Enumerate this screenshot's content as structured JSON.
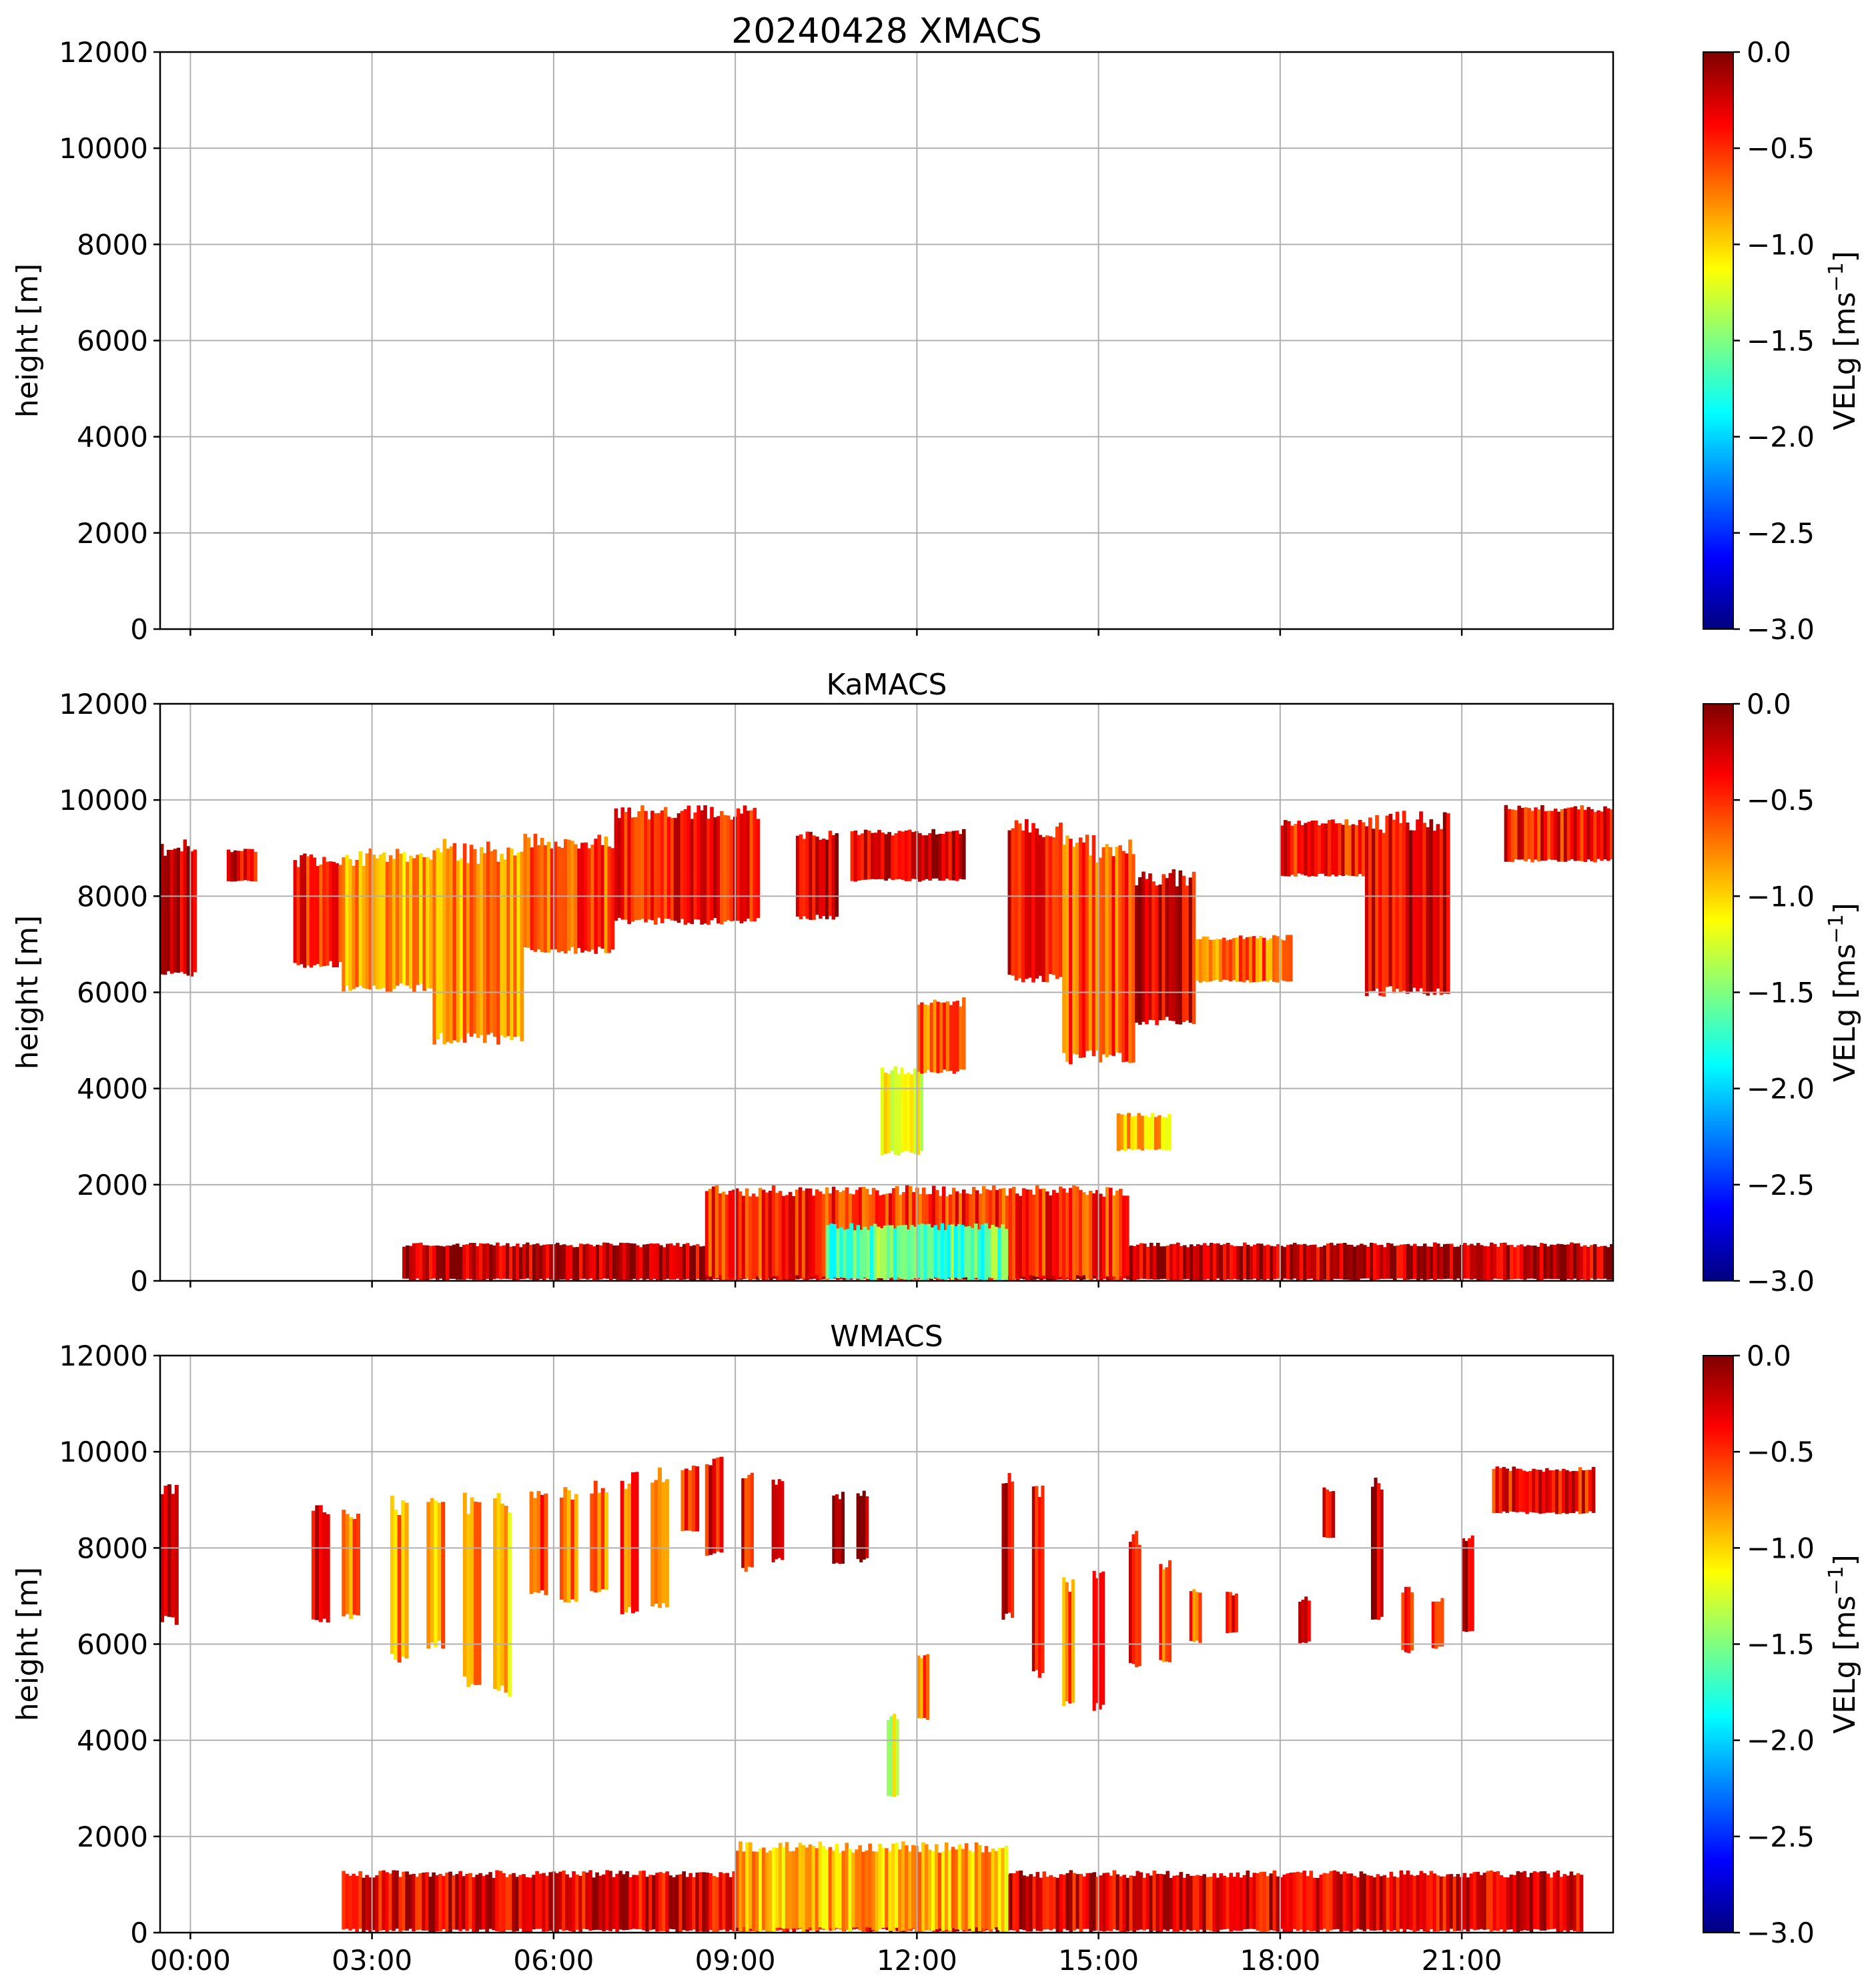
{
  "figure": {
    "title": "20240428 XMACS"
  },
  "chart_data": [
    {
      "type": "heatmap",
      "panel": "XMACS",
      "title": "20240428 XMACS",
      "xlabel": "",
      "ylabel": "height [m]",
      "ylim": [
        0,
        12000
      ],
      "xlim_hours": [
        -0.5,
        23.5
      ],
      "yticks": [
        0,
        2000,
        4000,
        6000,
        8000,
        10000,
        12000
      ],
      "xticks": [],
      "xtick_hours": [
        0,
        3,
        6,
        9,
        12,
        15,
        18,
        21
      ],
      "grid": true,
      "colorbar": {
        "label": "VELg [ms$^{-1}$]",
        "label_main": "VELg [ms",
        "label_sup": "−1",
        "label_end": "]",
        "range": [
          -3.0,
          0.0
        ],
        "ticks": [
          "0.0",
          "−0.5",
          "−1.0",
          "−1.5",
          "−2.0",
          "−2.5",
          "−3.0"
        ],
        "colormap": "jet"
      },
      "echoes": []
    },
    {
      "type": "heatmap",
      "panel": "KaMACS",
      "title": "KaMACS",
      "xlabel": "",
      "ylabel": "height [m]",
      "ylim": [
        0,
        12000
      ],
      "xlim_hours": [
        -0.5,
        23.5
      ],
      "yticks": [
        0,
        2000,
        4000,
        6000,
        8000,
        10000,
        12000
      ],
      "xticks": [],
      "xtick_hours": [
        0,
        3,
        6,
        9,
        12,
        15,
        18,
        21
      ],
      "grid": true,
      "colorbar": {
        "label": "VELg [ms$^{-1}$]",
        "label_main": "VELg [ms",
        "label_sup": "−1",
        "label_end": "]",
        "range": [
          -3.0,
          0.0
        ],
        "ticks": [
          "0.0",
          "−0.5",
          "−1.0",
          "−1.5",
          "−2.0",
          "−2.5",
          "−3.0"
        ],
        "colormap": "jet"
      },
      "echoes": [
        {
          "t0": -0.5,
          "t1": 0.1,
          "h_bottom": 6300,
          "h_top": 9200,
          "vel": -0.2
        },
        {
          "t0": 0.6,
          "t1": 1.1,
          "h_bottom": 8300,
          "h_top": 9000,
          "vel": -0.3
        },
        {
          "t0": 1.7,
          "t1": 2.5,
          "h_bottom": 6500,
          "h_top": 8900,
          "vel": -0.4
        },
        {
          "t0": 2.5,
          "t1": 4.0,
          "h_bottom": 6000,
          "h_top": 9000,
          "vel": -0.9
        },
        {
          "t0": 4.0,
          "t1": 5.5,
          "h_bottom": 4900,
          "h_top": 9200,
          "vel": -0.8
        },
        {
          "t0": 5.5,
          "t1": 7.0,
          "h_bottom": 6800,
          "h_top": 9300,
          "vel": -0.6
        },
        {
          "t0": 7.0,
          "t1": 9.4,
          "h_bottom": 7400,
          "h_top": 9900,
          "vel": -0.4
        },
        {
          "t0": 10.0,
          "t1": 10.7,
          "h_bottom": 7500,
          "h_top": 9400,
          "vel": -0.2
        },
        {
          "t0": 10.9,
          "t1": 12.8,
          "h_bottom": 8300,
          "h_top": 9400,
          "vel": -0.3
        },
        {
          "t0": 11.4,
          "t1": 12.1,
          "h_bottom": 2600,
          "h_top": 4500,
          "vel": -1.2
        },
        {
          "t0": 12.0,
          "t1": 12.8,
          "h_bottom": 4300,
          "h_top": 5900,
          "vel": -0.7
        },
        {
          "t0": 13.5,
          "t1": 14.4,
          "h_bottom": 6200,
          "h_top": 9600,
          "vel": -0.3
        },
        {
          "t0": 14.4,
          "t1": 15.6,
          "h_bottom": 4500,
          "h_top": 9300,
          "vel": -0.6
        },
        {
          "t0": 15.6,
          "t1": 16.6,
          "h_bottom": 5300,
          "h_top": 8600,
          "vel": -0.3
        },
        {
          "t0": 16.6,
          "t1": 18.2,
          "h_bottom": 6200,
          "h_top": 7200,
          "vel": -0.7
        },
        {
          "t0": 18.0,
          "t1": 19.4,
          "h_bottom": 8400,
          "h_top": 9600,
          "vel": -0.4
        },
        {
          "t0": 19.4,
          "t1": 20.8,
          "h_bottom": 5900,
          "h_top": 9800,
          "vel": -0.3
        },
        {
          "t0": 21.7,
          "t1": 23.5,
          "h_bottom": 8700,
          "h_top": 9900,
          "vel": -0.4
        },
        {
          "t0": 15.3,
          "t1": 16.2,
          "h_bottom": 2700,
          "h_top": 3500,
          "vel": -0.9
        },
        {
          "t0": 3.5,
          "t1": 23.5,
          "h_bottom": 0,
          "h_top": 800,
          "vel": -0.2
        },
        {
          "t0": 8.5,
          "t1": 15.5,
          "h_bottom": 0,
          "h_top": 2000,
          "vel": -0.5
        },
        {
          "t0": 10.5,
          "t1": 13.5,
          "h_bottom": 0,
          "h_top": 1200,
          "vel": -1.6
        }
      ]
    },
    {
      "type": "heatmap",
      "panel": "WMACS",
      "title": "WMACS",
      "xlabel": "",
      "ylabel": "height [m]",
      "ylim": [
        0,
        12000
      ],
      "xlim_hours": [
        -0.5,
        23.5
      ],
      "yticks": [
        0,
        2000,
        4000,
        6000,
        8000,
        10000,
        12000
      ],
      "xticks": [
        "00:00",
        "03:00",
        "06:00",
        "09:00",
        "12:00",
        "15:00",
        "18:00",
        "21:00"
      ],
      "xtick_hours": [
        0,
        3,
        6,
        9,
        12,
        15,
        18,
        21
      ],
      "grid": true,
      "colorbar": {
        "label": "VELg [ms$^{-1}$]",
        "label_main": "VELg [ms",
        "label_sup": "−1",
        "label_end": "]",
        "range": [
          -3.0,
          0.0
        ],
        "ticks": [
          "0.0",
          "−0.5",
          "−1.0",
          "−1.5",
          "−2.0",
          "−2.5",
          "−3.0"
        ],
        "colormap": "jet"
      },
      "echoes": [
        {
          "t0": -0.5,
          "t1": -0.2,
          "h_bottom": 6400,
          "h_top": 9400,
          "vel": -0.2
        },
        {
          "t0": 2.0,
          "t1": 2.3,
          "h_bottom": 6400,
          "h_top": 8900,
          "vel": -0.4
        },
        {
          "t0": 2.5,
          "t1": 2.8,
          "h_bottom": 6500,
          "h_top": 8800,
          "vel": -0.7
        },
        {
          "t0": 3.3,
          "t1": 3.6,
          "h_bottom": 5600,
          "h_top": 9100,
          "vel": -0.8
        },
        {
          "t0": 3.9,
          "t1": 4.2,
          "h_bottom": 5900,
          "h_top": 9200,
          "vel": -0.8
        },
        {
          "t0": 4.5,
          "t1": 4.8,
          "h_bottom": 5100,
          "h_top": 9200,
          "vel": -0.9
        },
        {
          "t0": 5.0,
          "t1": 5.3,
          "h_bottom": 4900,
          "h_top": 9200,
          "vel": -0.9
        },
        {
          "t0": 5.6,
          "t1": 5.9,
          "h_bottom": 7000,
          "h_top": 9200,
          "vel": -0.6
        },
        {
          "t0": 6.1,
          "t1": 6.4,
          "h_bottom": 6800,
          "h_top": 9300,
          "vel": -0.7
        },
        {
          "t0": 6.6,
          "t1": 6.9,
          "h_bottom": 7000,
          "h_top": 9400,
          "vel": -0.7
        },
        {
          "t0": 7.1,
          "t1": 7.4,
          "h_bottom": 6600,
          "h_top": 9600,
          "vel": -0.6
        },
        {
          "t0": 7.6,
          "t1": 7.9,
          "h_bottom": 6700,
          "h_top": 9700,
          "vel": -0.6
        },
        {
          "t0": 8.1,
          "t1": 8.4,
          "h_bottom": 8300,
          "h_top": 9800,
          "vel": -0.5
        },
        {
          "t0": 8.5,
          "t1": 8.8,
          "h_bottom": 7800,
          "h_top": 9900,
          "vel": -0.4
        },
        {
          "t0": 9.1,
          "t1": 9.3,
          "h_bottom": 7500,
          "h_top": 9600,
          "vel": -0.4
        },
        {
          "t0": 9.6,
          "t1": 9.8,
          "h_bottom": 7700,
          "h_top": 9500,
          "vel": -0.4
        },
        {
          "t0": 10.6,
          "t1": 10.8,
          "h_bottom": 7600,
          "h_top": 9200,
          "vel": -0.2
        },
        {
          "t0": 11.0,
          "t1": 11.2,
          "h_bottom": 7700,
          "h_top": 9200,
          "vel": -0.2
        },
        {
          "t0": 11.5,
          "t1": 11.7,
          "h_bottom": 2800,
          "h_top": 4600,
          "vel": -1.2
        },
        {
          "t0": 12.0,
          "t1": 12.2,
          "h_bottom": 4400,
          "h_top": 5800,
          "vel": -0.7
        },
        {
          "t0": 13.4,
          "t1": 13.6,
          "h_bottom": 6500,
          "h_top": 9600,
          "vel": -0.3
        },
        {
          "t0": 13.9,
          "t1": 14.1,
          "h_bottom": 5200,
          "h_top": 9400,
          "vel": -0.4
        },
        {
          "t0": 14.4,
          "t1": 14.6,
          "h_bottom": 4700,
          "h_top": 7400,
          "vel": -0.7
        },
        {
          "t0": 14.9,
          "t1": 15.1,
          "h_bottom": 4600,
          "h_top": 7600,
          "vel": -0.5
        },
        {
          "t0": 15.5,
          "t1": 15.7,
          "h_bottom": 5500,
          "h_top": 8400,
          "vel": -0.4
        },
        {
          "t0": 16.0,
          "t1": 16.2,
          "h_bottom": 5600,
          "h_top": 7800,
          "vel": -0.6
        },
        {
          "t0": 16.5,
          "t1": 16.7,
          "h_bottom": 6000,
          "h_top": 7200,
          "vel": -0.6
        },
        {
          "t0": 17.1,
          "t1": 17.3,
          "h_bottom": 6200,
          "h_top": 7100,
          "vel": -0.4
        },
        {
          "t0": 18.3,
          "t1": 18.5,
          "h_bottom": 6000,
          "h_top": 7000,
          "vel": -0.4
        },
        {
          "t0": 18.7,
          "t1": 18.9,
          "h_bottom": 8200,
          "h_top": 9300,
          "vel": -0.4
        },
        {
          "t0": 19.5,
          "t1": 19.7,
          "h_bottom": 6500,
          "h_top": 9600,
          "vel": -0.3
        },
        {
          "t0": 20.0,
          "t1": 20.2,
          "h_bottom": 5800,
          "h_top": 7200,
          "vel": -0.5
        },
        {
          "t0": 20.5,
          "t1": 20.7,
          "h_bottom": 5900,
          "h_top": 7000,
          "vel": -0.5
        },
        {
          "t0": 21.0,
          "t1": 21.2,
          "h_bottom": 6200,
          "h_top": 8400,
          "vel": -0.2
        },
        {
          "t0": 21.5,
          "t1": 23.2,
          "h_bottom": 8700,
          "h_top": 9700,
          "vel": -0.4
        },
        {
          "t0": 2.5,
          "t1": 23.0,
          "h_bottom": 0,
          "h_top": 1300,
          "vel": -0.3
        },
        {
          "t0": 9.0,
          "t1": 13.5,
          "h_bottom": 0,
          "h_top": 1900,
          "vel": -0.9
        }
      ]
    }
  ]
}
